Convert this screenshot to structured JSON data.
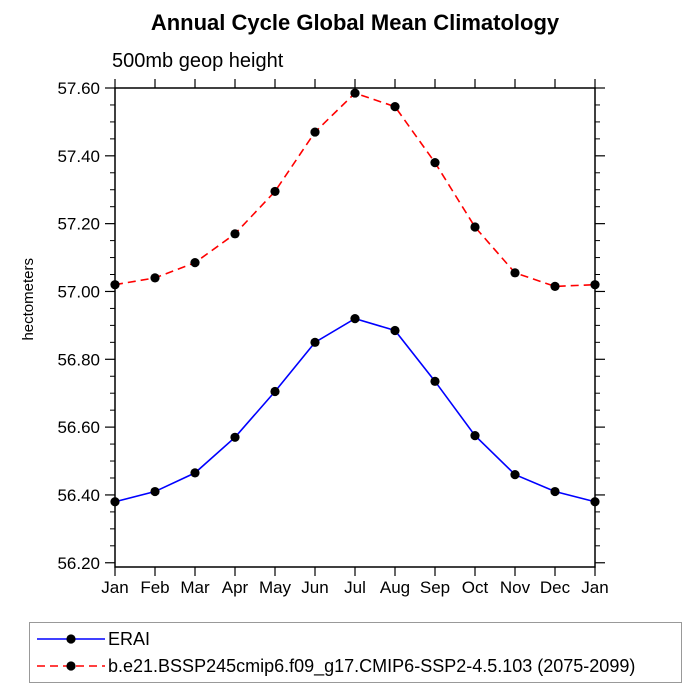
{
  "chart_data": {
    "type": "line",
    "title": "Annual Cycle Global Mean Climatology",
    "subtitle": "500mb geop height",
    "ylabel": "hectometers",
    "xlabel": "",
    "categories": [
      "Jan",
      "Feb",
      "Mar",
      "Apr",
      "May",
      "Jun",
      "Jul",
      "Aug",
      "Sep",
      "Oct",
      "Nov",
      "Dec",
      "Jan"
    ],
    "series": [
      {
        "name": "ERAI",
        "color": "#0000ff",
        "line_style": "solid",
        "marker": "filled-circle",
        "marker_color": "#000000",
        "values": [
          56.38,
          56.41,
          56.465,
          56.57,
          56.705,
          56.85,
          56.92,
          56.885,
          56.735,
          56.575,
          56.46,
          56.41,
          56.38
        ]
      },
      {
        "name": "b.e21.BSSP245cmip6.f09_g17.CMIP6-SSP2-4.5.103 (2075-2099)",
        "color": "#ff0000",
        "line_style": "dashed",
        "marker": "filled-circle",
        "marker_color": "#000000",
        "values": [
          57.02,
          57.04,
          57.085,
          57.17,
          57.295,
          57.47,
          57.585,
          57.545,
          57.38,
          57.19,
          57.055,
          57.015,
          57.02
        ]
      }
    ],
    "ylim": [
      56.1875,
      57.6
    ],
    "yticks_major": [
      56.2,
      56.4,
      56.6,
      56.8,
      57.0,
      57.2,
      57.4,
      57.6
    ],
    "ytick_minor_step": 0.05,
    "ytick_decimals": 2,
    "grid": false,
    "axis_color": "#000000",
    "legend_position": "bottom-left-box"
  }
}
